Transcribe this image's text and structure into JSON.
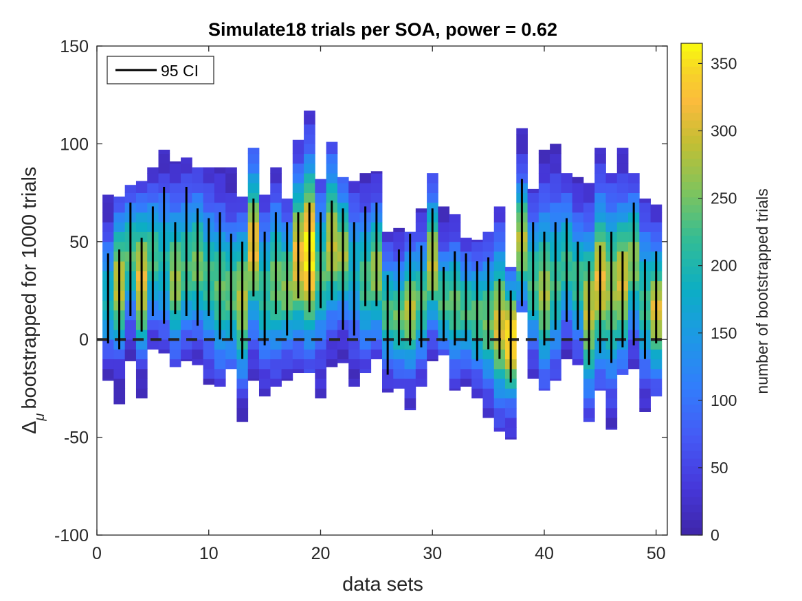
{
  "chart_data": {
    "type": "heatmap",
    "title": "Simulate18 trials per SOA, power = 0.62",
    "xlabel": "data sets",
    "ylabel": "bootstrapped  for 1000 trials",
    "ylabel_symbol": "Δ",
    "ylabel_subscript": "μ",
    "xlim": [
      0,
      51
    ],
    "ylim": [
      -100,
      150
    ],
    "xticks": [
      0,
      10,
      20,
      30,
      40,
      50
    ],
    "yticks": [
      -100,
      -50,
      0,
      50,
      100,
      150
    ],
    "colorbar": {
      "label": "number of bootstrapped trials",
      "range": [
        0,
        365
      ],
      "ticks": [
        0,
        50,
        100,
        150,
        200,
        250,
        300,
        350
      ],
      "colormap": "parula"
    },
    "reference_line": {
      "y": 0,
      "style": "dashed"
    },
    "legend": {
      "entries": [
        "95 CI"
      ],
      "location": "top-left"
    },
    "columns": [
      {
        "x": 1,
        "min": -21,
        "max": 74,
        "mode": 20,
        "peak": 190
      },
      {
        "x": 2,
        "min": -33,
        "max": 73,
        "mode": 28,
        "peak": 290
      },
      {
        "x": 3,
        "min": -11,
        "max": 79,
        "mode": 42,
        "peak": 230
      },
      {
        "x": 4,
        "min": -30,
        "max": 81,
        "mode": 30,
        "peak": 310
      },
      {
        "x": 5,
        "min": -5,
        "max": 88,
        "mode": 42,
        "peak": 230
      },
      {
        "x": 6,
        "min": -7,
        "max": 97,
        "mode": 40,
        "peak": 200
      },
      {
        "x": 7,
        "min": -14,
        "max": 91,
        "mode": 32,
        "peak": 270
      },
      {
        "x": 8,
        "min": -11,
        "max": 93,
        "mode": 38,
        "peak": 230
      },
      {
        "x": 9,
        "min": -13,
        "max": 88,
        "mode": 40,
        "peak": 250
      },
      {
        "x": 10,
        "min": -23,
        "max": 88,
        "mode": 32,
        "peak": 220
      },
      {
        "x": 11,
        "min": -24,
        "max": 88,
        "mode": 26,
        "peak": 240
      },
      {
        "x": 12,
        "min": -15,
        "max": 88,
        "mode": 24,
        "peak": 240
      },
      {
        "x": 13,
        "min": -42,
        "max": 73,
        "mode": 20,
        "peak": 280
      },
      {
        "x": 14,
        "min": -21,
        "max": 98,
        "mode": 48,
        "peak": 310
      },
      {
        "x": 15,
        "min": -29,
        "max": 74,
        "mode": 25,
        "peak": 220
      },
      {
        "x": 16,
        "min": -24,
        "max": 88,
        "mode": 30,
        "peak": 250
      },
      {
        "x": 17,
        "min": -21,
        "max": 72,
        "mode": 28,
        "peak": 260
      },
      {
        "x": 18,
        "min": -17,
        "max": 102,
        "mode": 42,
        "peak": 320
      },
      {
        "x": 19,
        "min": -17,
        "max": 117,
        "mode": 45,
        "peak": 365
      },
      {
        "x": 20,
        "min": -30,
        "max": 82,
        "mode": 35,
        "peak": 230
      },
      {
        "x": 21,
        "min": -14,
        "max": 101,
        "mode": 50,
        "peak": 290
      },
      {
        "x": 22,
        "min": -12,
        "max": 83,
        "mode": 45,
        "peak": 270
      },
      {
        "x": 23,
        "min": -24,
        "max": 81,
        "mode": 35,
        "peak": 180
      },
      {
        "x": 24,
        "min": -17,
        "max": 85,
        "mode": 30,
        "peak": 230
      },
      {
        "x": 25,
        "min": -10,
        "max": 86,
        "mode": 35,
        "peak": 270
      },
      {
        "x": 26,
        "min": -27,
        "max": 55,
        "mode": 15,
        "peak": 230
      },
      {
        "x": 27,
        "min": -25,
        "max": 57,
        "mode": 12,
        "peak": 240
      },
      {
        "x": 28,
        "min": -36,
        "max": 55,
        "mode": 15,
        "peak": 280
      },
      {
        "x": 29,
        "min": -24,
        "max": 67,
        "mode": 20,
        "peak": 230
      },
      {
        "x": 30,
        "min": -11,
        "max": 85,
        "mode": 40,
        "peak": 290
      },
      {
        "x": 31,
        "min": -8,
        "max": 68,
        "mode": 20,
        "peak": 230
      },
      {
        "x": 32,
        "min": -26,
        "max": 64,
        "mode": 18,
        "peak": 240
      },
      {
        "x": 33,
        "min": -24,
        "max": 52,
        "mode": 15,
        "peak": 230
      },
      {
        "x": 34,
        "min": -30,
        "max": 51,
        "mode": 12,
        "peak": 240
      },
      {
        "x": 35,
        "min": -40,
        "max": 55,
        "mode": 10,
        "peak": 250
      },
      {
        "x": 36,
        "min": -47,
        "max": 68,
        "mode": 8,
        "peak": 300
      },
      {
        "x": 37,
        "min": -51,
        "max": 37,
        "mode": 0,
        "peak": 350
      },
      {
        "x": 38,
        "min": 14,
        "max": 108,
        "mode": 50,
        "peak": 280
      },
      {
        "x": 39,
        "min": -20,
        "max": 77,
        "mode": 30,
        "peak": 230
      },
      {
        "x": 40,
        "min": -26,
        "max": 97,
        "mode": 25,
        "peak": 270
      },
      {
        "x": 41,
        "min": -21,
        "max": 100,
        "mode": 30,
        "peak": 220
      },
      {
        "x": 42,
        "min": -10,
        "max": 85,
        "mode": 40,
        "peak": 220
      },
      {
        "x": 43,
        "min": -13,
        "max": 83,
        "mode": 30,
        "peak": 220
      },
      {
        "x": 44,
        "min": -42,
        "max": 80,
        "mode": 15,
        "peak": 290
      },
      {
        "x": 45,
        "min": -26,
        "max": 98,
        "mode": 30,
        "peak": 310
      },
      {
        "x": 46,
        "min": -46,
        "max": 85,
        "mode": 25,
        "peak": 270
      },
      {
        "x": 47,
        "min": -18,
        "max": 98,
        "mode": 30,
        "peak": 300
      },
      {
        "x": 48,
        "min": -15,
        "max": 85,
        "mode": 40,
        "peak": 260
      },
      {
        "x": 49,
        "min": -37,
        "max": 72,
        "mode": 20,
        "peak": 220
      },
      {
        "x": 50,
        "min": -29,
        "max": 69,
        "mode": 15,
        "peak": 300
      }
    ],
    "ci_95": [
      {
        "x": 1,
        "low": -2,
        "high": 44
      },
      {
        "x": 2,
        "low": -5,
        "high": 46
      },
      {
        "x": 3,
        "low": 12,
        "high": 70
      },
      {
        "x": 4,
        "low": 4,
        "high": 52
      },
      {
        "x": 5,
        "low": 12,
        "high": 68
      },
      {
        "x": 6,
        "low": 8,
        "high": 78
      },
      {
        "x": 7,
        "low": 13,
        "high": 60
      },
      {
        "x": 8,
        "low": 12,
        "high": 78
      },
      {
        "x": 9,
        "low": 7,
        "high": 67
      },
      {
        "x": 10,
        "low": 12,
        "high": 62
      },
      {
        "x": 11,
        "low": 0,
        "high": 65
      },
      {
        "x": 12,
        "low": 0,
        "high": 54
      },
      {
        "x": 13,
        "low": -10,
        "high": 50
      },
      {
        "x": 14,
        "low": 22,
        "high": 72
      },
      {
        "x": 15,
        "low": -3,
        "high": 55
      },
      {
        "x": 16,
        "low": 13,
        "high": 65
      },
      {
        "x": 17,
        "low": 2,
        "high": 60
      },
      {
        "x": 18,
        "low": 21,
        "high": 65
      },
      {
        "x": 19,
        "low": 14,
        "high": 70
      },
      {
        "x": 20,
        "low": 16,
        "high": 65
      },
      {
        "x": 21,
        "low": 20,
        "high": 71
      },
      {
        "x": 22,
        "low": 5,
        "high": 67
      },
      {
        "x": 23,
        "low": 2,
        "high": 60
      },
      {
        "x": 24,
        "low": 17,
        "high": 68
      },
      {
        "x": 25,
        "low": 17,
        "high": 70
      },
      {
        "x": 26,
        "low": -18,
        "high": 33
      },
      {
        "x": 27,
        "low": -3,
        "high": 46
      },
      {
        "x": 28,
        "low": -3,
        "high": 54
      },
      {
        "x": 29,
        "low": -4,
        "high": 48
      },
      {
        "x": 30,
        "low": 20,
        "high": 67
      },
      {
        "x": 31,
        "low": -1,
        "high": 37
      },
      {
        "x": 32,
        "low": -3,
        "high": 45
      },
      {
        "x": 33,
        "low": -1,
        "high": 44
      },
      {
        "x": 34,
        "low": -11,
        "high": 40
      },
      {
        "x": 35,
        "low": -5,
        "high": 42
      },
      {
        "x": 36,
        "low": -10,
        "high": 31
      },
      {
        "x": 37,
        "low": -22,
        "high": 25
      },
      {
        "x": 38,
        "low": 17,
        "high": 82
      },
      {
        "x": 39,
        "low": 12,
        "high": 60
      },
      {
        "x": 40,
        "low": -3,
        "high": 55
      },
      {
        "x": 41,
        "low": 5,
        "high": 60
      },
      {
        "x": 42,
        "low": 9,
        "high": 62
      },
      {
        "x": 43,
        "low": 5,
        "high": 50
      },
      {
        "x": 44,
        "low": -13,
        "high": 40
      },
      {
        "x": 45,
        "low": -7,
        "high": 48
      },
      {
        "x": 46,
        "low": -12,
        "high": 55
      },
      {
        "x": 47,
        "low": -4,
        "high": 45
      },
      {
        "x": 48,
        "low": -3,
        "high": 70
      },
      {
        "x": 49,
        "low": -10,
        "high": 41
      },
      {
        "x": 50,
        "low": -2,
        "high": 45
      }
    ]
  }
}
